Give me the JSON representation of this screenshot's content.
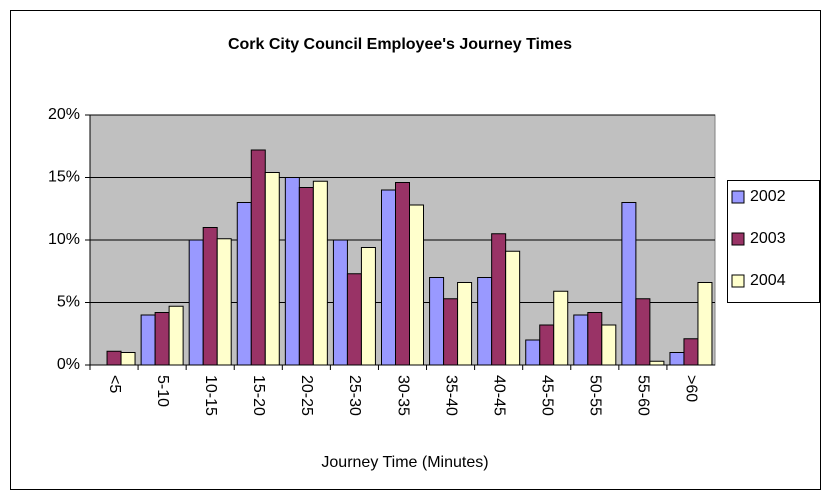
{
  "chart_data": {
    "type": "bar",
    "title": "Cork City Council Employee's Journey Times",
    "x_label": "Journey Time (Minutes)",
    "categories": [
      "<5",
      "5-10",
      "10-15",
      "15-20",
      "20-25",
      "25-30",
      "30-35",
      "35-40",
      "40-45",
      "45-50",
      "50-55",
      "55-60",
      ">60"
    ],
    "series": [
      {
        "name": "2002",
        "color": "#9999ff",
        "values": [
          0,
          4,
          10,
          13,
          15,
          10,
          14,
          7,
          7,
          2,
          4,
          13,
          1
        ]
      },
      {
        "name": "2003",
        "color": "#993366",
        "values": [
          1.1,
          4.2,
          11,
          17.2,
          14.2,
          7.3,
          14.6,
          5.3,
          10.5,
          3.2,
          4.2,
          5.3,
          2.1
        ]
      },
      {
        "name": "2004",
        "color": "#ffffcc",
        "values": [
          1,
          4.7,
          10.1,
          15.4,
          14.7,
          9.4,
          12.8,
          6.6,
          9.1,
          5.9,
          3.2,
          0.3,
          6.6
        ]
      }
    ],
    "ylim": [
      0,
      20
    ],
    "yticks": [
      {
        "value": 0,
        "label": "0%"
      },
      {
        "value": 5,
        "label": "5%"
      },
      {
        "value": 10,
        "label": "10%"
      },
      {
        "value": 15,
        "label": "15%"
      },
      {
        "value": 20,
        "label": "20%"
      }
    ],
    "grid": true,
    "plot_background": "#c0c0c0",
    "legend": "right"
  }
}
